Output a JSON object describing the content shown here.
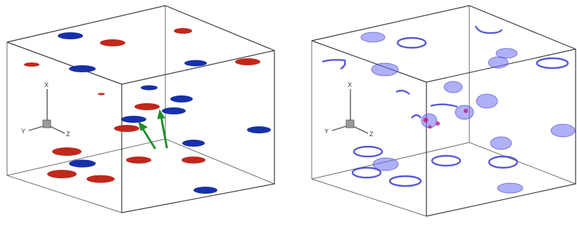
{
  "colors": {
    "blob_red": "#c0281c",
    "blob_blue": "#1730a8",
    "arrow_green": "#1f8f2a",
    "ring_blue": "#3a3ad0",
    "ring_fill": "#6f6ff0",
    "ring_core": "#c0208a",
    "box_edge": "#3a3a3a"
  },
  "left_panel": {
    "axes": {
      "x": "X",
      "y": "Y",
      "z": "Z"
    }
  },
  "right_panel": {
    "axes": {
      "x": "X",
      "y": "Y",
      "z": "Z"
    }
  }
}
